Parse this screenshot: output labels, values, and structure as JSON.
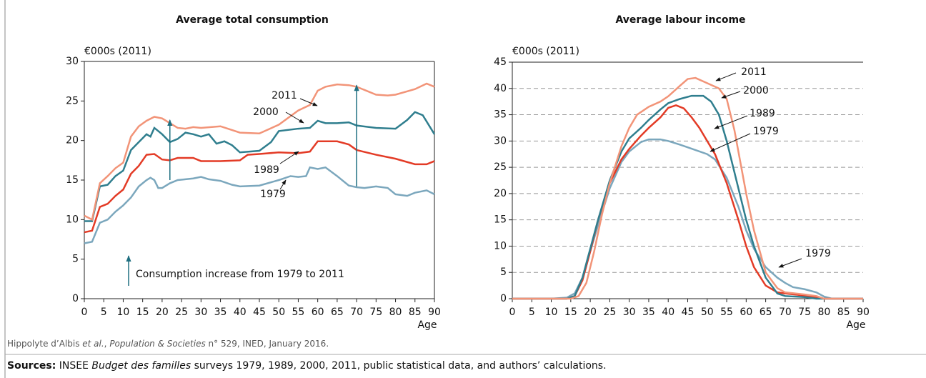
{
  "chart_data": [
    {
      "type": "line",
      "title": "Average total consumption",
      "ylabel": "€000s (2011)",
      "xlabel": "Age",
      "xlim": [
        0,
        90
      ],
      "xticks": [
        0,
        5,
        10,
        15,
        20,
        25,
        30,
        35,
        40,
        45,
        50,
        55,
        60,
        65,
        70,
        75,
        80,
        85,
        90
      ],
      "ylim": [
        0,
        30
      ],
      "yticks": [
        0,
        5,
        10,
        15,
        20,
        25,
        30
      ],
      "grid": false,
      "note": "Consumption increase from 1979 to 2011",
      "series": [
        {
          "name": "1979",
          "color": "#7ba7bd",
          "x": [
            0,
            2,
            4,
            6,
            8,
            10,
            12,
            14,
            16,
            17,
            18,
            19,
            20,
            22,
            24,
            26,
            28,
            30,
            32,
            35,
            38,
            40,
            45,
            50,
            53,
            55,
            57,
            58,
            60,
            62,
            65,
            68,
            70,
            72,
            75,
            78,
            80,
            83,
            85,
            88,
            90
          ],
          "values": [
            7,
            7.2,
            9.6,
            10,
            11,
            11.8,
            12.8,
            14.2,
            15,
            15.3,
            15,
            14,
            14,
            14.6,
            15,
            15.1,
            15.2,
            15.4,
            15.1,
            14.9,
            14.4,
            14.2,
            14.3,
            15,
            15.5,
            15.4,
            15.5,
            16.6,
            16.4,
            16.6,
            15.5,
            14.3,
            14.1,
            14,
            14.2,
            14,
            13.2,
            13,
            13.4,
            13.7,
            13.2
          ]
        },
        {
          "name": "1989",
          "color": "#e33b26",
          "x": [
            0,
            2,
            4,
            6,
            8,
            10,
            12,
            14,
            16,
            18,
            20,
            22,
            24,
            28,
            30,
            35,
            40,
            42,
            45,
            50,
            55,
            58,
            60,
            65,
            68,
            70,
            75,
            80,
            85,
            88,
            90
          ],
          "values": [
            8.4,
            8.6,
            11.6,
            12,
            13,
            13.8,
            15.8,
            16.8,
            18.2,
            18.3,
            17.6,
            17.5,
            17.8,
            17.8,
            17.4,
            17.4,
            17.5,
            18.2,
            18.3,
            18.5,
            18.4,
            18.6,
            19.9,
            19.9,
            19.5,
            18.8,
            18.2,
            17.7,
            17,
            17,
            17.4
          ]
        },
        {
          "name": "2000",
          "color": "#2f7e8e",
          "x": [
            0,
            2,
            4,
            6,
            8,
            10,
            12,
            14,
            16,
            17,
            18,
            20,
            22,
            24,
            26,
            28,
            30,
            32,
            34,
            36,
            38,
            40,
            45,
            48,
            50,
            55,
            58,
            60,
            62,
            65,
            68,
            70,
            75,
            80,
            83,
            85,
            87,
            90
          ],
          "values": [
            9.8,
            9.8,
            14.2,
            14.4,
            15.5,
            16.2,
            18.8,
            19.8,
            20.8,
            20.5,
            21.6,
            20.8,
            19.8,
            20.2,
            21,
            20.8,
            20.5,
            20.8,
            19.6,
            19.9,
            19.4,
            18.5,
            18.7,
            19.8,
            21.2,
            21.5,
            21.6,
            22.5,
            22.2,
            22.2,
            22.3,
            21.9,
            21.6,
            21.5,
            22.6,
            23.6,
            23.2,
            20.8
          ]
        },
        {
          "name": "2011",
          "color": "#f29478",
          "x": [
            0,
            2,
            4,
            6,
            8,
            10,
            12,
            14,
            16,
            18,
            20,
            22,
            24,
            26,
            28,
            30,
            35,
            40,
            45,
            50,
            55,
            58,
            60,
            62,
            65,
            68,
            70,
            75,
            78,
            80,
            85,
            88,
            90
          ],
          "values": [
            10.5,
            10,
            14.6,
            15.5,
            16.5,
            17.2,
            20.5,
            21.8,
            22.5,
            23,
            22.8,
            22.2,
            21.6,
            21.5,
            21.7,
            21.6,
            21.8,
            21,
            20.9,
            22,
            23.8,
            24.5,
            26.3,
            26.8,
            27.1,
            27,
            26.8,
            25.8,
            25.7,
            25.8,
            26.5,
            27.2,
            26.8
          ]
        }
      ]
    },
    {
      "type": "line",
      "title": "Average labour income",
      "ylabel": "€000s (2011)",
      "xlabel": "Age",
      "xlim": [
        0,
        90
      ],
      "xticks": [
        0,
        5,
        10,
        15,
        20,
        25,
        30,
        35,
        40,
        45,
        50,
        55,
        60,
        65,
        70,
        75,
        80,
        85,
        90
      ],
      "ylim": [
        0,
        45
      ],
      "yticks": [
        0,
        5,
        10,
        15,
        20,
        25,
        30,
        35,
        40,
        45
      ],
      "grid": true,
      "series": [
        {
          "name": "1979",
          "color": "#7ba7bd",
          "x": [
            0,
            10,
            14,
            16,
            18,
            20,
            22,
            25,
            28,
            30,
            33,
            35,
            38,
            40,
            43,
            45,
            50,
            52,
            55,
            58,
            60,
            62,
            65,
            68,
            70,
            72,
            75,
            78,
            80,
            82,
            90
          ],
          "values": [
            0,
            0,
            0.2,
            1,
            4,
            9,
            14,
            21,
            26,
            28,
            29.8,
            30.3,
            30.3,
            30,
            29.3,
            28.8,
            27.5,
            26.5,
            23,
            17.5,
            13,
            9.5,
            6,
            4,
            3,
            2.2,
            1.8,
            1.2,
            0.4,
            0,
            0
          ]
        },
        {
          "name": "1989",
          "color": "#e33b26",
          "x": [
            0,
            14,
            16,
            18,
            20,
            22,
            25,
            28,
            30,
            33,
            35,
            38,
            40,
            42,
            44,
            46,
            48,
            50,
            52,
            55,
            58,
            60,
            62,
            65,
            68,
            70,
            75,
            78,
            80,
            90
          ],
          "values": [
            0,
            0,
            0.5,
            3.5,
            9,
            15,
            22,
            26.5,
            28.5,
            31,
            32.5,
            34.5,
            36.3,
            36.8,
            36.2,
            34.5,
            32.5,
            30,
            27.5,
            22,
            15,
            10,
            6,
            2.5,
            1.2,
            1,
            0.6,
            0.3,
            0,
            0
          ]
        },
        {
          "name": "2000",
          "color": "#2f7e8e",
          "x": [
            0,
            14,
            16,
            18,
            20,
            22,
            25,
            28,
            30,
            33,
            35,
            38,
            40,
            43,
            46,
            49,
            51,
            53,
            55,
            57,
            60,
            62,
            65,
            68,
            70,
            75,
            78,
            90
          ],
          "values": [
            0,
            0,
            0.5,
            4,
            9.5,
            15,
            22.5,
            28,
            30.5,
            32.5,
            34,
            36,
            37.2,
            38,
            38.6,
            38.6,
            37.5,
            35,
            30,
            24,
            15,
            10,
            4,
            1,
            0.5,
            0.3,
            0,
            0
          ]
        },
        {
          "name": "2011",
          "color": "#f29478",
          "x": [
            0,
            15,
            17,
            19,
            21,
            23,
            25,
            28,
            30,
            32,
            35,
            38,
            40,
            43,
            45,
            47,
            50,
            53,
            55,
            57,
            60,
            62,
            65,
            68,
            70,
            75,
            78,
            80,
            90
          ],
          "values": [
            0,
            0,
            0.5,
            3,
            9,
            16,
            22,
            29,
            32.5,
            35,
            36.5,
            37.5,
            38.5,
            40.5,
            41.8,
            42,
            41,
            40,
            38,
            32,
            20,
            13,
            5,
            2,
            1.2,
            0.8,
            0.5,
            0,
            0
          ]
        }
      ]
    }
  ],
  "citation": [
    "Hippolyte d’Albis ",
    "et al.",
    ", ",
    "Population & Societies",
    " n° 529, INED, January 2016."
  ],
  "sources": [
    "Sources:",
    " INSEE ",
    "Budget des familles",
    " surveys 1979, 1989, 2000, 2011, public statistical data, and authors’ calculations."
  ]
}
